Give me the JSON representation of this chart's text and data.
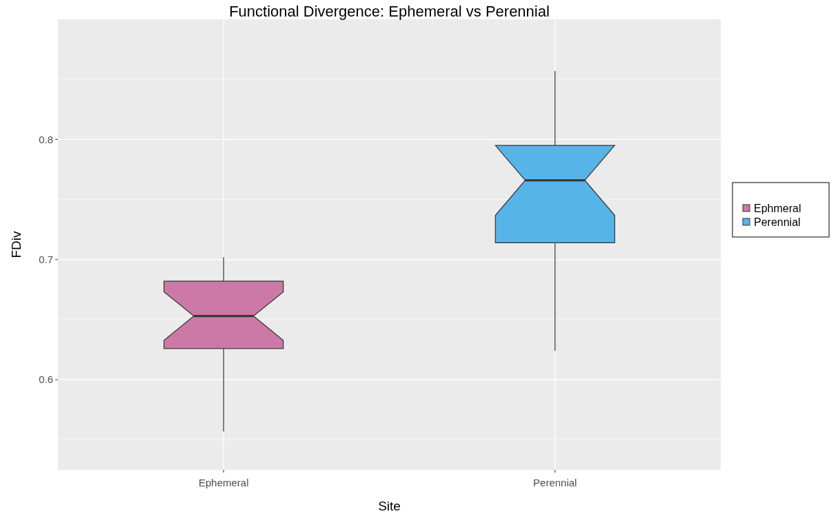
{
  "chart_data": {
    "type": "box",
    "title": "Functional Divergence: Ephemeral vs Perennial",
    "xlabel": "Site",
    "ylabel": "FDiv",
    "categories": [
      "Ephemeral",
      "Perennial"
    ],
    "series": [
      {
        "name": "Ephmeral",
        "color": "#cc79a7",
        "boxes": [
          {
            "low": 0.557,
            "q1": 0.626,
            "median": 0.653,
            "q3": 0.682,
            "high": 0.702
          },
          null
        ]
      },
      {
        "name": "Perennial",
        "color": "#56b4e9",
        "boxes": [
          null,
          {
            "low": 0.624,
            "q1": 0.714,
            "median": 0.766,
            "q3": 0.795,
            "high": 0.857
          }
        ]
      }
    ],
    "ylim": [
      0.525,
      0.9
    ],
    "yticks": [
      0.6,
      0.7,
      0.8
    ],
    "grid": true,
    "legend": "right"
  }
}
